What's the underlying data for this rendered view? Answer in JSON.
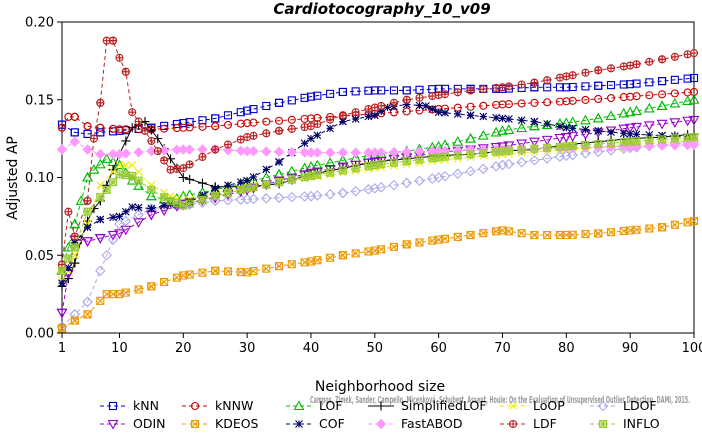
{
  "chart_data": {
    "type": "line",
    "title": "Cardiotocography_10_v09",
    "xlabel": "Neighborhood size",
    "ylabel": "Adjusted AP",
    "xlim": [
      1,
      100
    ],
    "ylim": [
      0,
      0.2
    ],
    "x_ticks": [
      1,
      10,
      20,
      30,
      40,
      50,
      60,
      70,
      80,
      90,
      100
    ],
    "y_ticks": [
      "0.00",
      "0.05",
      "0.10",
      "0.15",
      "0.20"
    ],
    "grid": false,
    "legend_position": "bottom",
    "annotation": "Campos, Zimek, Sander, Campello, Micenková, Schubert, Assent, Houle: On the Evaluation of Unsupervised Outlier Detection. DAMI, 2015.",
    "series": [
      {
        "name": "kNN",
        "color": "#0000cc",
        "marker": "square",
        "dash": "4,3",
        "x": [
          1,
          3,
          5,
          7,
          10,
          15,
          20,
          25,
          30,
          35,
          40,
          45,
          50,
          55,
          60,
          65,
          70,
          75,
          80,
          85,
          90,
          95,
          100
        ],
        "y": [
          0.134,
          0.129,
          0.128,
          0.129,
          0.13,
          0.132,
          0.135,
          0.138,
          0.143,
          0.148,
          0.152,
          0.155,
          0.156,
          0.156,
          0.157,
          0.157,
          0.157,
          0.158,
          0.158,
          0.159,
          0.16,
          0.162,
          0.164
        ]
      },
      {
        "name": "kNNW",
        "color": "#cc0000",
        "marker": "circle",
        "dash": "4,3",
        "x": [
          1,
          2,
          3,
          5,
          7,
          10,
          15,
          20,
          25,
          30,
          40,
          50,
          60,
          70,
          80,
          90,
          100
        ],
        "y": [
          0.132,
          0.139,
          0.139,
          0.133,
          0.132,
          0.131,
          0.131,
          0.132,
          0.133,
          0.135,
          0.138,
          0.141,
          0.144,
          0.147,
          0.149,
          0.152,
          0.155
        ]
      },
      {
        "name": "LOF",
        "color": "#00bb00",
        "marker": "triangle",
        "dash": "4,3",
        "x": [
          1,
          2,
          3,
          4,
          5,
          6,
          8,
          10,
          12,
          15,
          18,
          20,
          25,
          30,
          35,
          40,
          45,
          50,
          55,
          60,
          65,
          70,
          75,
          80,
          85,
          90,
          95,
          100
        ],
        "y": [
          0.04,
          0.055,
          0.07,
          0.085,
          0.1,
          0.105,
          0.112,
          0.108,
          0.098,
          0.088,
          0.085,
          0.088,
          0.092,
          0.097,
          0.102,
          0.107,
          0.111,
          0.115,
          0.117,
          0.12,
          0.125,
          0.13,
          0.133,
          0.135,
          0.138,
          0.142,
          0.146,
          0.15
        ]
      },
      {
        "name": "SimplifiedLOF",
        "color": "#000000",
        "marker": "plus",
        "dash": "",
        "x": [
          1,
          2,
          3,
          4,
          5,
          6,
          7,
          8,
          9,
          10,
          12,
          14,
          16,
          18,
          20,
          25,
          30,
          35,
          40,
          45,
          50,
          55,
          60,
          65,
          70,
          75,
          80,
          85,
          90,
          95,
          100
        ],
        "y": [
          0.03,
          0.035,
          0.045,
          0.06,
          0.072,
          0.08,
          0.085,
          0.095,
          0.105,
          0.115,
          0.132,
          0.136,
          0.125,
          0.112,
          0.1,
          0.094,
          0.094,
          0.096,
          0.102,
          0.106,
          0.11,
          0.112,
          0.114,
          0.115,
          0.117,
          0.118,
          0.121,
          0.123,
          0.125,
          0.126,
          0.128
        ]
      },
      {
        "name": "LoOP",
        "color": "#eeee00",
        "marker": "x",
        "dash": "4,3",
        "x": [
          1,
          2,
          3,
          5,
          7,
          10,
          12,
          15,
          18,
          20,
          25,
          30,
          35,
          40,
          50,
          60,
          70,
          80,
          90,
          100
        ],
        "y": [
          0.034,
          0.04,
          0.05,
          0.07,
          0.095,
          0.108,
          0.108,
          0.095,
          0.088,
          0.085,
          0.09,
          0.094,
          0.097,
          0.1,
          0.106,
          0.111,
          0.115,
          0.118,
          0.121,
          0.124
        ]
      },
      {
        "name": "LDOF",
        "color": "#aaaaee",
        "marker": "diamond",
        "dash": "4,3",
        "x": [
          1,
          3,
          5,
          8,
          10,
          15,
          20,
          25,
          30,
          35,
          40,
          45,
          50,
          60,
          70,
          80,
          90,
          100
        ],
        "y": [
          0.004,
          0.012,
          0.02,
          0.05,
          0.07,
          0.08,
          0.082,
          0.085,
          0.086,
          0.087,
          0.088,
          0.09,
          0.093,
          0.1,
          0.108,
          0.114,
          0.119,
          0.123
        ]
      },
      {
        "name": "ODIN",
        "color": "#9900cc",
        "marker": "triangle-down",
        "dash": "4,3",
        "x": [
          1,
          2,
          3,
          5,
          7,
          10,
          15,
          20,
          25,
          30,
          35,
          40,
          45,
          50,
          60,
          70,
          80,
          90,
          100
        ],
        "y": [
          0.013,
          0.038,
          0.06,
          0.059,
          0.061,
          0.064,
          0.076,
          0.083,
          0.087,
          0.092,
          0.098,
          0.103,
          0.107,
          0.11,
          0.116,
          0.12,
          0.126,
          0.132,
          0.137
        ]
      },
      {
        "name": "KDEOS",
        "color": "#ee9900",
        "marker": "box-x",
        "dash": "4,3",
        "x": [
          1,
          3,
          5,
          8,
          10,
          15,
          20,
          25,
          30,
          35,
          40,
          45,
          50,
          55,
          60,
          65,
          70,
          75,
          80,
          85,
          90,
          95,
          100
        ],
        "y": [
          0.003,
          0.008,
          0.012,
          0.025,
          0.025,
          0.03,
          0.037,
          0.04,
          0.039,
          0.043,
          0.046,
          0.05,
          0.053,
          0.057,
          0.06,
          0.063,
          0.066,
          0.063,
          0.063,
          0.064,
          0.066,
          0.068,
          0.072
        ]
      },
      {
        "name": "COF",
        "color": "#000066",
        "marker": "asterisk",
        "dash": "4,3",
        "x": [
          1,
          2,
          3,
          5,
          7,
          10,
          12,
          15,
          18,
          20,
          25,
          30,
          35,
          40,
          45,
          50,
          52,
          55,
          58,
          60,
          65,
          70,
          75,
          80,
          85,
          90,
          95,
          100
        ],
        "y": [
          0.032,
          0.042,
          0.058,
          0.068,
          0.073,
          0.075,
          0.081,
          0.08,
          0.083,
          0.082,
          0.093,
          0.098,
          0.11,
          0.125,
          0.136,
          0.14,
          0.145,
          0.147,
          0.146,
          0.142,
          0.14,
          0.138,
          0.136,
          0.132,
          0.13,
          0.128,
          0.127,
          0.126
        ]
      },
      {
        "name": "FastABOD",
        "color": "#ff99ff",
        "marker": "diamond-filled",
        "dash": "4,3",
        "x": [
          1,
          3,
          5,
          7,
          10,
          15,
          20,
          25,
          30,
          40,
          50,
          60,
          70,
          80,
          90,
          100
        ],
        "y": [
          0.118,
          0.123,
          0.118,
          0.115,
          0.115,
          0.117,
          0.118,
          0.118,
          0.117,
          0.116,
          0.116,
          0.117,
          0.118,
          0.119,
          0.12,
          0.121
        ]
      },
      {
        "name": "LDF",
        "color": "#bb2222",
        "marker": "circle-plus",
        "dash": "4,3",
        "x": [
          1,
          2,
          3,
          5,
          6,
          7,
          8,
          9,
          10,
          11,
          12,
          14,
          16,
          18,
          20,
          25,
          30,
          35,
          40,
          45,
          50,
          55,
          60,
          65,
          70,
          75,
          80,
          85,
          90,
          95,
          100
        ],
        "y": [
          0.044,
          0.078,
          0.062,
          0.085,
          0.125,
          0.148,
          0.188,
          0.188,
          0.177,
          0.168,
          0.142,
          0.13,
          0.117,
          0.105,
          0.106,
          0.118,
          0.126,
          0.13,
          0.133,
          0.14,
          0.145,
          0.15,
          0.153,
          0.156,
          0.158,
          0.161,
          0.165,
          0.169,
          0.172,
          0.176,
          0.18
        ]
      },
      {
        "name": "INFLO",
        "color": "#99cc33",
        "marker": "box-star",
        "dash": "4,3",
        "x": [
          1,
          2,
          3,
          5,
          8,
          10,
          12,
          15,
          18,
          20,
          25,
          30,
          35,
          40,
          50,
          60,
          70,
          80,
          90,
          100
        ],
        "y": [
          0.04,
          0.048,
          0.055,
          0.078,
          0.092,
          0.102,
          0.101,
          0.092,
          0.085,
          0.082,
          0.088,
          0.093,
          0.097,
          0.101,
          0.108,
          0.113,
          0.117,
          0.12,
          0.123,
          0.126
        ]
      }
    ]
  }
}
